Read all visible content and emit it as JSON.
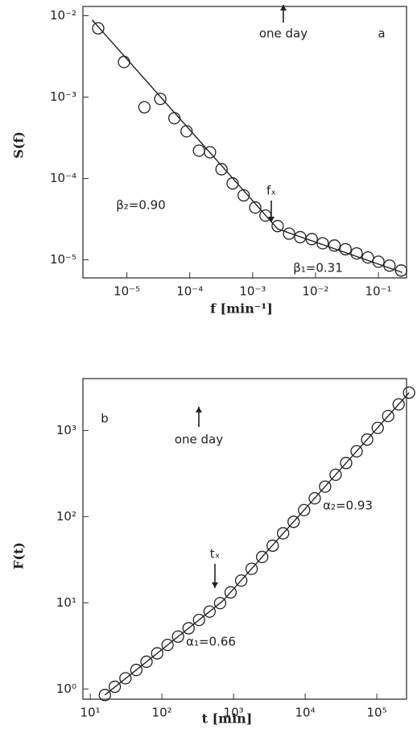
{
  "chart_data": [
    {
      "type": "scatter",
      "xlog": true,
      "ylog": true,
      "ylabel": "S(f)",
      "xlabel": "f [min⁻¹]",
      "annotations": [
        "one day",
        "a",
        "β₂=0.90",
        "fₓ",
        "β₁=0.31"
      ],
      "xlim": [
        2e-06,
        0.28
      ],
      "ylim": [
        6e-06,
        0.013
      ],
      "xticks": [
        {
          "value": 1e-05,
          "label": "10⁻⁵"
        },
        {
          "value": 0.0001,
          "label": "10⁻⁴"
        },
        {
          "value": 0.001,
          "label": "10⁻³"
        },
        {
          "value": 0.01,
          "label": "10⁻²"
        },
        {
          "value": 0.1,
          "label": "10⁻¹"
        }
      ],
      "yticks": [
        {
          "value": 0.01,
          "label": "10⁻²"
        },
        {
          "value": 0.001,
          "label": "10⁻³"
        },
        {
          "value": 0.0001,
          "label": "10⁻⁴"
        },
        {
          "value": 1e-05,
          "label": "10⁻⁵"
        }
      ],
      "series": [
        {
          "color": "#222222",
          "marker": "circle",
          "x": [
            3.5e-06,
            9e-06,
            1.9e-05,
            3.4e-05,
            5.7e-05,
            8.9e-05,
            0.00014,
            0.00021,
            0.00032,
            0.00048,
            0.00072,
            0.0011,
            0.0016,
            0.0025,
            0.0038,
            0.0057,
            0.0087,
            0.013,
            0.02,
            0.03,
            0.045,
            0.068,
            0.1,
            0.15,
            0.23
          ],
          "values": [
            0.007,
            0.0027,
            0.00075,
            0.00095,
            0.00055,
            0.00038,
            0.00022,
            0.00021,
            0.00013,
            8.7e-05,
            6.2e-05,
            4.4e-05,
            3.5e-05,
            2.6e-05,
            2.1e-05,
            1.9e-05,
            1.8e-05,
            1.6e-05,
            1.5e-05,
            1.35e-05,
            1.2e-05,
            1.07e-05,
            9.5e-06,
            8.5e-06,
            7.4e-06
          ]
        },
        {
          "color": "#222222",
          "marker": "line",
          "x": [
            2.8e-06,
            0.0025,
            0.24
          ],
          "values": [
            0.0089,
            2.4e-05,
            7e-06
          ]
        }
      ]
    },
    {
      "type": "scatter",
      "xlog": true,
      "ylog": true,
      "ylabel": "F(t)",
      "xlabel": "t [min]",
      "annotations": [
        "b",
        "one day",
        "tₓ",
        "α₂=0.93",
        "α₁=0.66"
      ],
      "xlim": [
        7.9,
        260000
      ],
      "ylim": [
        0.76,
        4000
      ],
      "xticks": [
        {
          "value": 10,
          "label": "10¹"
        },
        {
          "value": 100,
          "label": "10²"
        },
        {
          "value": 1000,
          "label": "10³"
        },
        {
          "value": 10000,
          "label": "10⁴"
        },
        {
          "value": 100000,
          "label": "10⁵"
        }
      ],
      "yticks": [
        {
          "value": 1,
          "label": "10⁰"
        },
        {
          "value": 10,
          "label": "10¹"
        },
        {
          "value": 100,
          "label": "10²"
        },
        {
          "value": 1000,
          "label": "10³"
        }
      ],
      "series": [
        {
          "color": "#222222",
          "marker": "circle",
          "x": [
            16,
            22,
            31,
            44,
            61,
            86,
            120,
            168,
            236,
            330,
            463,
            650,
            910,
            1280,
            1790,
            2510,
            3520,
            4920,
            6900,
            9670,
            13600,
            19000,
            26600,
            37300,
            52300,
            73300,
            103000,
            144000,
            202000,
            282000
          ],
          "values": [
            0.85,
            1.06,
            1.33,
            1.66,
            2.07,
            2.59,
            3.24,
            4.05,
            5.06,
            6.32,
            7.9,
            9.9,
            13.2,
            18.1,
            24.8,
            34,
            46,
            64,
            87,
            119,
            163,
            223,
            306,
            419,
            573,
            784,
            1070,
            1470,
            2010,
            2750
          ]
        },
        {
          "color": "#222222",
          "marker": "line",
          "x": [
            16,
            708,
            282000
          ],
          "values": [
            0.85,
            10.5,
            2750
          ]
        }
      ]
    }
  ]
}
